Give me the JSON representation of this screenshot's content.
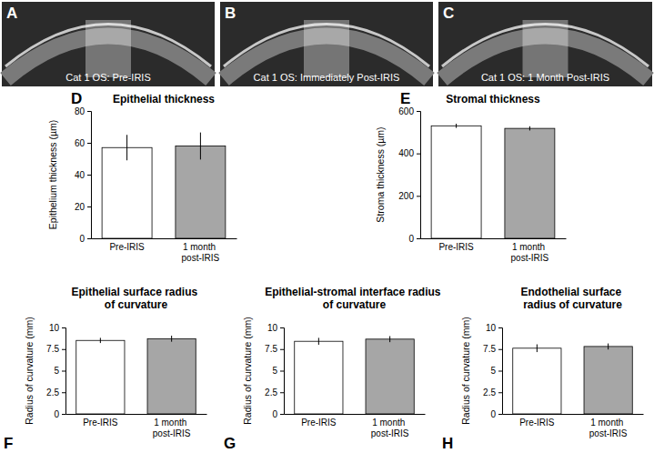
{
  "images": [
    {
      "panel_label": "A",
      "caption": "Cat 1 OS: Pre-IRIS"
    },
    {
      "panel_label": "B",
      "caption": "Cat 1 OS: Immediately Post-IRIS"
    },
    {
      "panel_label": "C",
      "caption": "Cat 1 OS: 1 Month Post-IRIS"
    }
  ],
  "chart_data": [
    {
      "type": "bar",
      "panel_label": "D",
      "title": "Epithelial thickness",
      "y_label": "Epithelium thickness (µm)",
      "categories": [
        "Pre-IRIS",
        "1 month post-IRIS"
      ],
      "values": [
        57,
        58
      ],
      "errors": [
        8,
        8.5
      ],
      "colors": [
        "#ffffff",
        "#a6a6a6"
      ],
      "ylim": [
        0,
        80
      ],
      "yticks": [
        0,
        20,
        40,
        60,
        80
      ],
      "grid": false
    },
    {
      "type": "bar",
      "panel_label": "E",
      "title": "Stromal thickness",
      "y_label": "Stroma thickness (µm)",
      "categories": [
        "Pre-IRIS",
        "1 month post-IRIS"
      ],
      "values": [
        530,
        518
      ],
      "errors": [
        10,
        10
      ],
      "colors": [
        "#ffffff",
        "#a6a6a6"
      ],
      "ylim": [
        0,
        600
      ],
      "yticks": [
        0,
        200,
        400,
        600
      ],
      "grid": false
    },
    {
      "type": "bar",
      "panel_label": "F",
      "title": "Epithelial surface radius of curvature",
      "y_label": "Radius of curvature (mm)",
      "categories": [
        "Pre-IRIS",
        "1 month post-IRIS"
      ],
      "values": [
        8.5,
        8.7
      ],
      "errors": [
        0.3,
        0.35
      ],
      "colors": [
        "#ffffff",
        "#a6a6a6"
      ],
      "ylim": [
        0,
        10
      ],
      "yticks": [
        0,
        2.5,
        5,
        7.5,
        10
      ],
      "grid": false
    },
    {
      "type": "bar",
      "panel_label": "G",
      "title": "Epithelial-stromal interface radius of curvature",
      "y_label": "Radius of curvature (mm)",
      "categories": [
        "Pre-IRIS",
        "1 month post-IRIS"
      ],
      "values": [
        8.4,
        8.65
      ],
      "errors": [
        0.4,
        0.35
      ],
      "colors": [
        "#ffffff",
        "#a6a6a6"
      ],
      "ylim": [
        0,
        10
      ],
      "yticks": [
        0,
        2.5,
        5,
        7.5,
        10
      ],
      "grid": false
    },
    {
      "type": "bar",
      "panel_label": "H",
      "title": "Endothelial surface radius of curvature",
      "y_label": "Radius of curvature (mm)",
      "categories": [
        "Pre-IRIS",
        "1 month post-IRIS"
      ],
      "values": [
        7.6,
        7.8
      ],
      "errors": [
        0.45,
        0.35
      ],
      "colors": [
        "#ffffff",
        "#a6a6a6"
      ],
      "ylim": [
        0,
        10
      ],
      "yticks": [
        0,
        2.5,
        5,
        7.5,
        10
      ],
      "grid": false
    }
  ]
}
